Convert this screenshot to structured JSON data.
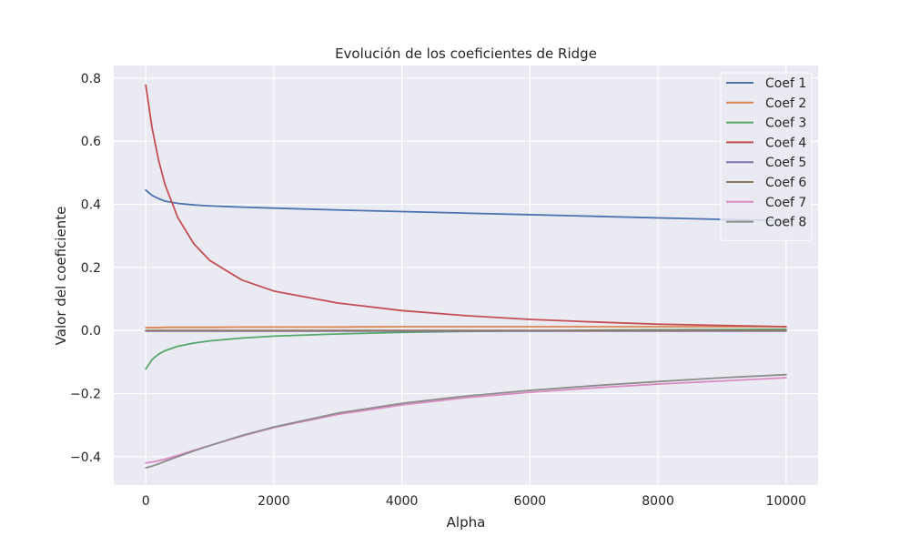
{
  "chart_data": {
    "type": "line",
    "title": "Evolución de los coeficientes de Ridge",
    "xlabel": "Alpha",
    "ylabel": "Valor del coeficiente",
    "xlim": [
      -500,
      10500
    ],
    "ylim": [
      -0.49,
      0.84
    ],
    "xticks": [
      0,
      2000,
      4000,
      6000,
      8000,
      10000
    ],
    "xtick_labels": [
      "0",
      "2000",
      "4000",
      "6000",
      "8000",
      "10000"
    ],
    "yticks": [
      -0.4,
      -0.2,
      0.0,
      0.2,
      0.4,
      0.6,
      0.8
    ],
    "ytick_labels": [
      "−0.4",
      "−0.2",
      "0.0",
      "0.2",
      "0.4",
      "0.6",
      "0.8"
    ],
    "grid": true,
    "legend_position": "top-right",
    "background": "#eaeaf2",
    "x": [
      0,
      100,
      200,
      300,
      500,
      750,
      1000,
      1500,
      2000,
      3000,
      4000,
      5000,
      6000,
      7000,
      8000,
      9000,
      10000
    ],
    "series": [
      {
        "name": "Coef 1",
        "color": "#4c72b0",
        "values": [
          0.445,
          0.428,
          0.418,
          0.41,
          0.403,
          0.398,
          0.395,
          0.391,
          0.388,
          0.382,
          0.377,
          0.372,
          0.367,
          0.362,
          0.357,
          0.352,
          0.348
        ]
      },
      {
        "name": "Coef 2",
        "color": "#dd8452",
        "values": [
          0.009,
          0.009,
          0.009,
          0.01,
          0.01,
          0.01,
          0.01,
          0.011,
          0.011,
          0.011,
          0.012,
          0.012,
          0.012,
          0.012,
          0.012,
          0.012,
          0.012
        ]
      },
      {
        "name": "Coef 3",
        "color": "#55a868",
        "values": [
          -0.122,
          -0.092,
          -0.075,
          -0.064,
          -0.05,
          -0.04,
          -0.033,
          -0.024,
          -0.018,
          -0.011,
          -0.006,
          -0.003,
          -0.001,
          0.001,
          0.002,
          0.003,
          0.004
        ]
      },
      {
        "name": "Coef 4",
        "color": "#c44e52",
        "values": [
          0.778,
          0.64,
          0.54,
          0.463,
          0.358,
          0.275,
          0.222,
          0.16,
          0.125,
          0.087,
          0.063,
          0.047,
          0.035,
          0.027,
          0.02,
          0.016,
          0.012
        ]
      },
      {
        "name": "Coef 5",
        "color": "#8172b3",
        "values": [
          -0.002,
          -0.002,
          -0.002,
          -0.002,
          -0.002,
          -0.002,
          -0.002,
          -0.002,
          -0.002,
          -0.002,
          -0.002,
          -0.002,
          -0.002,
          -0.002,
          -0.002,
          -0.002,
          -0.002
        ]
      },
      {
        "name": "Coef 6",
        "color": "#937860",
        "values": [
          0.0,
          0.0,
          0.0,
          0.0,
          0.0,
          0.0,
          0.0,
          0.0,
          0.0,
          0.0,
          0.0,
          0.0,
          0.0,
          0.0,
          0.0,
          0.0,
          0.0
        ]
      },
      {
        "name": "Coef 7",
        "color": "#da8bc3",
        "values": [
          -0.42,
          -0.417,
          -0.413,
          -0.408,
          -0.396,
          -0.38,
          -0.365,
          -0.335,
          -0.308,
          -0.266,
          -0.236,
          -0.213,
          -0.196,
          -0.182,
          -0.17,
          -0.16,
          -0.15
        ]
      },
      {
        "name": "Coef 8",
        "color": "#8c8c8c",
        "values": [
          -0.435,
          -0.43,
          -0.423,
          -0.415,
          -0.4,
          -0.382,
          -0.365,
          -0.333,
          -0.306,
          -0.262,
          -0.231,
          -0.208,
          -0.19,
          -0.175,
          -0.162,
          -0.15,
          -0.14
        ]
      }
    ]
  }
}
